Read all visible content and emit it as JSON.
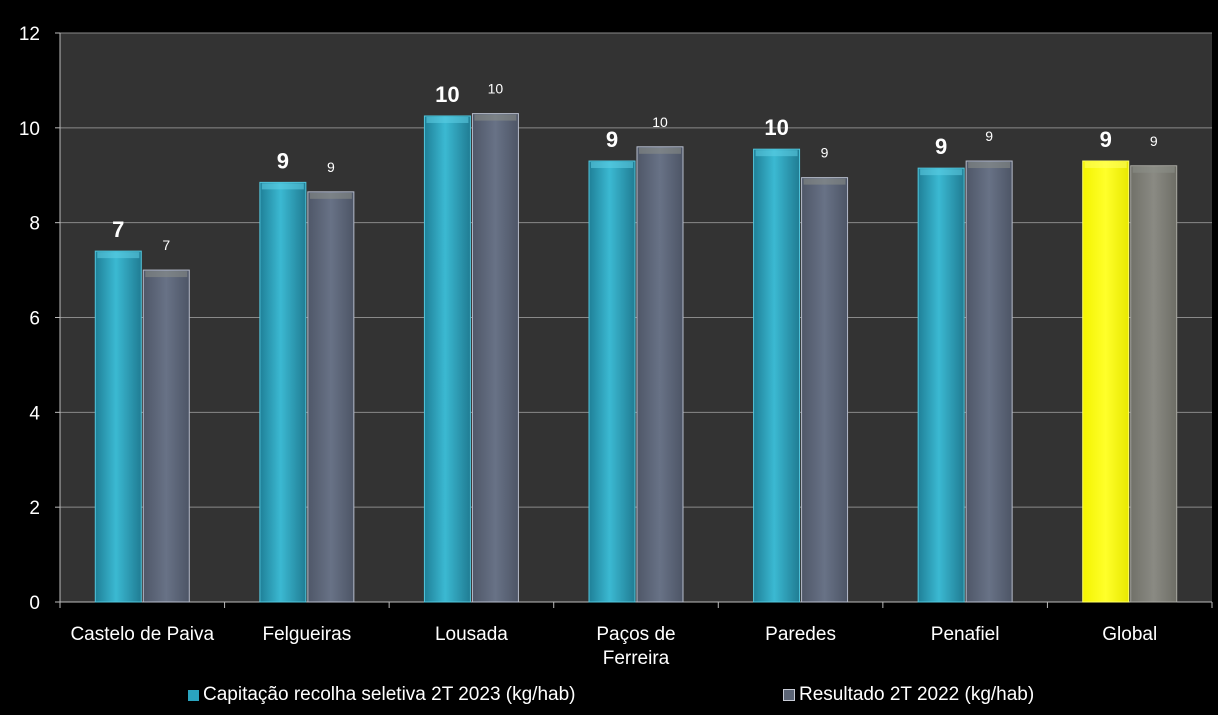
{
  "chart_data": {
    "type": "bar",
    "categories": [
      [
        "Castelo de Paiva"
      ],
      [
        "Felgueiras"
      ],
      [
        "Lousada"
      ],
      [
        "Paços de",
        "Ferreira"
      ],
      [
        "Paredes"
      ],
      [
        "Penafiel"
      ],
      [
        "Global"
      ]
    ],
    "series": [
      {
        "name": "Capitação recolha seletiva 2T 2023 (kg/hab)",
        "values": [
          7.4,
          8.85,
          10.25,
          9.3,
          9.55,
          9.15,
          9.3
        ],
        "labels": [
          "7",
          "9",
          "10",
          "9",
          "10",
          "9",
          "9"
        ],
        "color": "#2aa4bf",
        "highlight_color": "#ffff00"
      },
      {
        "name": "Resultado 2T 2022 (kg/hab)",
        "values": [
          7.0,
          8.65,
          10.3,
          9.6,
          8.95,
          9.3,
          9.2
        ],
        "labels": [
          "7",
          "9",
          "10",
          "10",
          "9",
          "9",
          "9"
        ],
        "color": "#5b6475",
        "highlight_color": "#7d7d78"
      }
    ],
    "highlight_category_index": 6,
    "ylim": [
      0,
      12
    ],
    "yticks": [
      "0",
      "2",
      "4",
      "6",
      "8",
      "10",
      "12"
    ],
    "grid": true,
    "legend": "bottom",
    "background": "#333333",
    "xlabel": "",
    "ylabel": "",
    "title": ""
  }
}
